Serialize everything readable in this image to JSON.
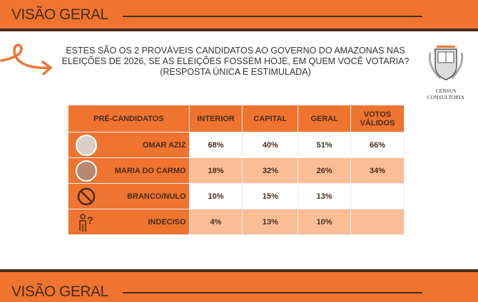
{
  "header": {
    "title": "VISÃO GERAL"
  },
  "footer": {
    "title": "VISÃO GERAL"
  },
  "question": "ESTES SÃO OS 2 PROVÁVEIS CANDIDATOS AO GOVERNO DO AMAZONAS NAS ELEIÇÕES DE 2026, SE AS ELEIÇÕES FOSSEM HOJE, EM QUEM VOCÊ VOTARIA? (RESPOSTA ÚNICA E ESTIMULADA)",
  "logo": {
    "text": "CENSUS CONSULTORIA",
    "seal": "CENSUS"
  },
  "colors": {
    "orange": "#ee7430",
    "peach": "#f9be98",
    "dark": "#4a2c1c"
  },
  "table": {
    "headers": [
      "PRÉ-CANDIDATOS",
      "INTERIOR",
      "CAPITAL",
      "GERAL",
      "VOTOS VÁLIDOS"
    ],
    "rows": [
      {
        "label": "OMAR AZIZ",
        "icon": "candidate-photo",
        "values": [
          "68%",
          "40%",
          "51%",
          "66%"
        ]
      },
      {
        "label": "MARIA DO CARMO",
        "icon": "candidate-photo",
        "values": [
          "18%",
          "32%",
          "26%",
          "34%"
        ]
      },
      {
        "label": "BRANCO/NULO",
        "icon": "prohibited-icon",
        "values": [
          "10%",
          "15%",
          "13%",
          ""
        ]
      },
      {
        "label": "INDECISO",
        "icon": "undecided-person-icon",
        "values": [
          "4%",
          "13%",
          "10%",
          ""
        ]
      }
    ]
  }
}
